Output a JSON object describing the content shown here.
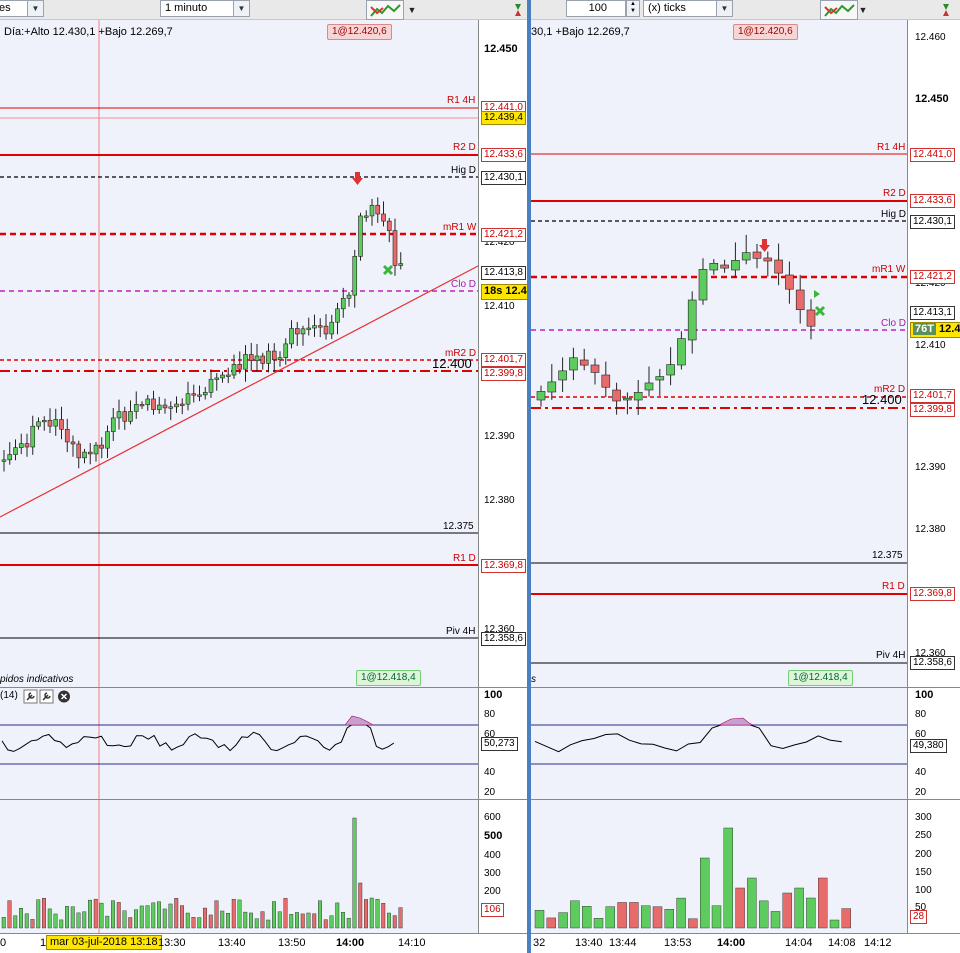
{
  "left": {
    "toolbar": {
      "combo_partial": "es",
      "timeframe": "1 minuto"
    },
    "header": {
      "day_stats": "Día:+Alto 12.430,1 +Bajo 12.269,7",
      "order_badge": "1@12.420,6"
    },
    "price_axis": {
      "ticks": [
        "12.450",
        "12.420",
        "12.410",
        "12.390",
        "12.380",
        "12.360"
      ]
    },
    "price_boxes": {
      "r1_4h": "12.441,0",
      "last_yellow": "12.439,4",
      "r2_d": "12.433,6",
      "hig_d": "12.430,1",
      "mr1_w": "12.421,2",
      "current": "12.413,8",
      "clo_d_partial": "12.4",
      "mr2_d": "12.401,7",
      "dash_level": "12.399,8",
      "r1_d": "12.369,8",
      "piv_4h": "12.358,6"
    },
    "line_labels": {
      "r1_4h": "R1 4H",
      "r2_d": "R2 D",
      "hig_d": "Hig D",
      "mr1_w": "mR1 W",
      "clo_d": "Clo D",
      "mr2_d": "mR2 D",
      "level_12400": "12.400",
      "level_12375": "12.375",
      "r1_d": "R1 D",
      "piv_4h": "Piv 4H"
    },
    "timer": "18s",
    "indicator": {
      "title": "pidos indicativos",
      "param": "(14)",
      "badge": "1@12.418,4",
      "axis": [
        "100",
        "80",
        "60",
        "40",
        "20"
      ],
      "value": "50,273"
    },
    "volume": {
      "axis": [
        "600",
        "500",
        "400",
        "300",
        "200",
        "100"
      ],
      "value": "106"
    },
    "time_axis": {
      "labels": [
        "0",
        "1",
        "13:30",
        "13:40",
        "13:50",
        "14:00",
        "14:10"
      ],
      "cursor_date": "mar 03-jul-2018 13:18"
    }
  },
  "right": {
    "toolbar": {
      "ticks_value": "100",
      "ticks_unit": "(x) ticks"
    },
    "header": {
      "day_stats": "30,1 +Bajo 12.269,7",
      "order_badge": "1@12.420,6"
    },
    "price_axis": {
      "ticks": [
        "12.460",
        "12.450",
        "12.420",
        "12.410",
        "12.390",
        "12.380",
        "12.360"
      ]
    },
    "price_boxes": {
      "r1_4h": "12.441,0",
      "r2_d": "12.433,6",
      "hig_d": "12.430,1",
      "mr1_w": "12.421,2",
      "current": "12.413,1",
      "clo_d_partial": "12.4",
      "mr2_d": "12.401,7",
      "dash_level": "12.399,8",
      "r1_d": "12.369,8",
      "piv_4h": "12.358,6"
    },
    "line_labels": {
      "r1_4h": "R1 4H",
      "r2_d": "R2 D",
      "hig_d": "Hig D",
      "mr1_w": "mR1 W",
      "clo_d": "Clo D",
      "mr2_d": "mR2 D",
      "level_12400": "12.400",
      "level_12375": "12.375",
      "r1_d": "R1 D",
      "piv_4h": "Piv 4H"
    },
    "timer": "76T",
    "indicator": {
      "title": "s",
      "badge": "1@12.418,4",
      "axis": [
        "100",
        "80",
        "60",
        "40",
        "20"
      ],
      "value": "49,380"
    },
    "volume": {
      "axis": [
        "300",
        "250",
        "200",
        "150",
        "100",
        "50"
      ],
      "value": "28"
    },
    "time_axis": {
      "labels": [
        "32",
        "13:40",
        "13:44",
        "13:53",
        "14:00",
        "14:04",
        "14:08",
        "14:12"
      ]
    }
  },
  "colors": {
    "bull": "#5ecb5e",
    "bear": "#e86b6b",
    "pivot_red": "#e00000",
    "close_magenta": "#c020c0",
    "panel_bg": "#f0f2fb",
    "divider": "#4a7fc1"
  },
  "icons": [
    "chevron-down-icon",
    "chart-tools-icon",
    "wrench-icon",
    "close-circle-icon",
    "sell-arrow-icon",
    "cross-marker-icon",
    "play-marker-icon",
    "pin-icon"
  ]
}
